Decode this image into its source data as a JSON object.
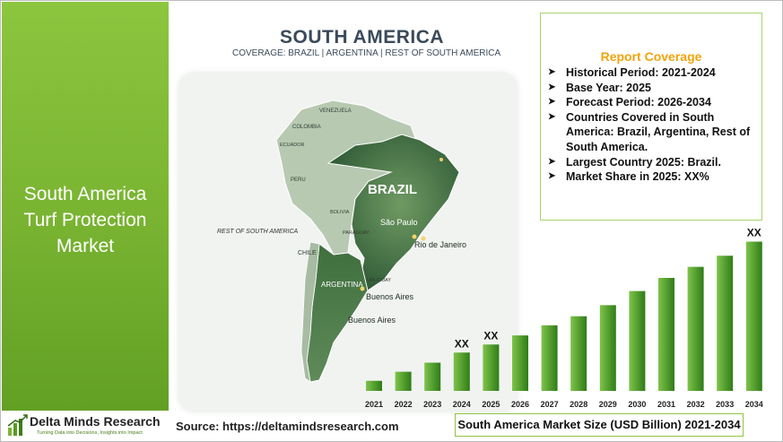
{
  "left_panel": {
    "title_lines": [
      "South America",
      "Turf Protection",
      "Market"
    ]
  },
  "logo": {
    "name": "Delta Minds Research",
    "tagline": "Turning Data into Decisions, Insights into Impact"
  },
  "source": "Source: https://deltamindsresearch.com",
  "map": {
    "title": "SOUTH AMERICA",
    "subtitle": "COVERAGE: BRAZIL | ARGENTINA | REST OF SOUTH AMERICA",
    "labels": {
      "venezuela": "VENEZUELA",
      "colombia": "COLOMBIA",
      "ecuador": "ECUADOR",
      "peru": "PERU",
      "brazil": "BRAZIL",
      "bolivia": "BOLIVIA",
      "paraguay": "PARAGUAY",
      "sao_paulo": "São Paulo",
      "rio": "Rio de Janeiro",
      "rest": "REST OF SOUTH AMERICA",
      "chile": "CHILE",
      "uruguay": "URUGUAY",
      "argentina": "ARGENTINA",
      "buenos_aires_1": "Buenos Aires",
      "buenos_aires_2": "Buenos Aires"
    }
  },
  "report_coverage": {
    "title": "Report Coverage",
    "items": [
      "Historical Period: 2021-2024",
      "Base Year: 2025",
      "Forecast Period: 2026-2034",
      "Countries Covered in South America: Brazil, Argentina, Rest of South America.",
      "Largest Country 2025: Brazil.",
      "Market Share in 2025: XX%"
    ]
  },
  "chart_data": {
    "type": "bar",
    "title": "South America Market Size (USD Billion) 2021-2034",
    "categories": [
      "2021",
      "2022",
      "2023",
      "2024",
      "2025",
      "2026",
      "2027",
      "2028",
      "2029",
      "2030",
      "2031",
      "2032",
      "2033",
      "2034"
    ],
    "values": [
      1.0,
      1.9,
      2.8,
      3.8,
      4.6,
      5.5,
      6.5,
      7.4,
      8.5,
      9.9,
      11.2,
      12.3,
      13.4,
      14.8
    ],
    "data_labels": [
      "",
      "",
      "",
      "XX",
      "XX",
      "",
      "",
      "",
      "",
      "",
      "",
      "",
      "",
      "XX"
    ],
    "colors": {
      "bar_light": "#7ec34a",
      "bar_dark": "#2f7d18"
    },
    "ylim": [
      0,
      16
    ]
  }
}
